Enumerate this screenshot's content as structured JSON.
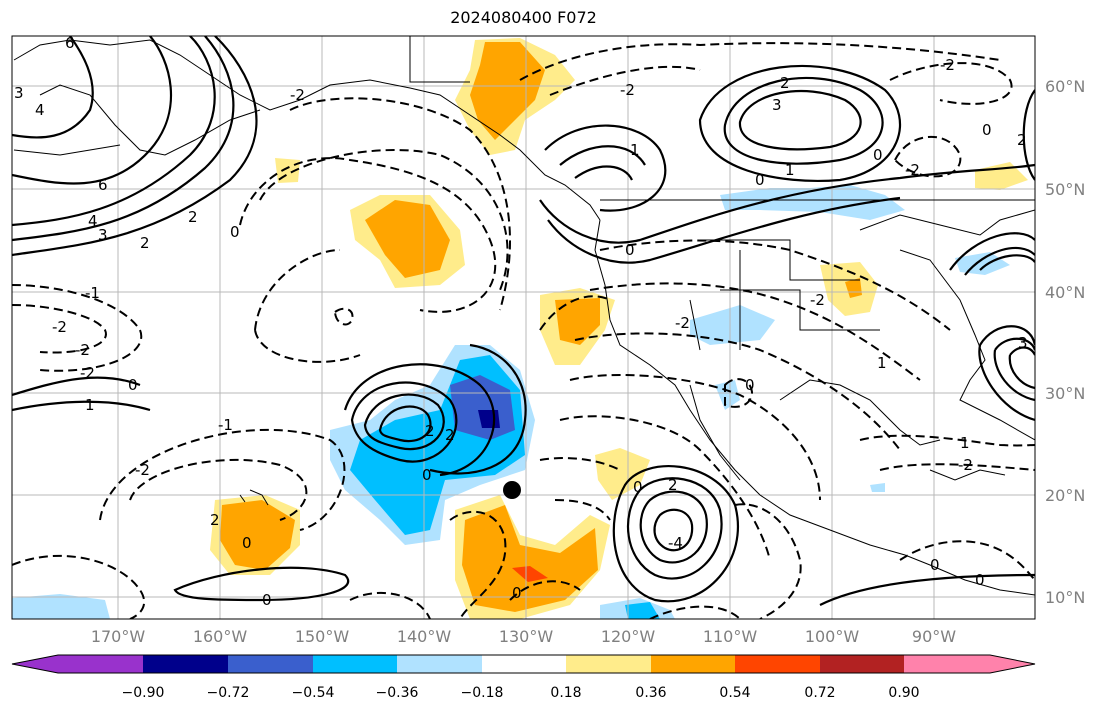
{
  "title": "2024080400 F072",
  "lat_labels": [
    "60°N",
    "50°N",
    "40°N",
    "30°N",
    "20°N",
    "10°N"
  ],
  "lon_labels": [
    "170°W",
    "160°W",
    "150°W",
    "140°W",
    "130°W",
    "120°W",
    "110°W",
    "100°W",
    "90°W"
  ],
  "colorbar": {
    "colors": [
      "#9932cc",
      "#00008b",
      "#3a5fcd",
      "#00bfff",
      "#b0e2ff",
      "#ffffff",
      "#ffec8b",
      "#ffa500",
      "#ff4500",
      "#b22222",
      "#ff82ab"
    ],
    "tick_labels": [
      "−0.90",
      "−0.72",
      "−0.54",
      "−0.36",
      "−0.18",
      "0.18",
      "0.36",
      "0.54",
      "0.72",
      "0.90"
    ]
  },
  "contour_labels": [
    "6",
    "4",
    "3",
    "2",
    "1",
    "0",
    "-1",
    "-2",
    "-3",
    "3",
    "2",
    "1",
    "0",
    "2",
    "-2",
    "2",
    "1",
    "0",
    "-1",
    "-2",
    "0",
    "2",
    "-4",
    "0",
    "-2",
    "-2",
    "-1",
    "1",
    "-2",
    "-3",
    "3",
    "1",
    "2",
    "-2",
    "0",
    "-2",
    "0",
    "-1",
    "2",
    "0"
  ],
  "marker": "black-dot"
}
